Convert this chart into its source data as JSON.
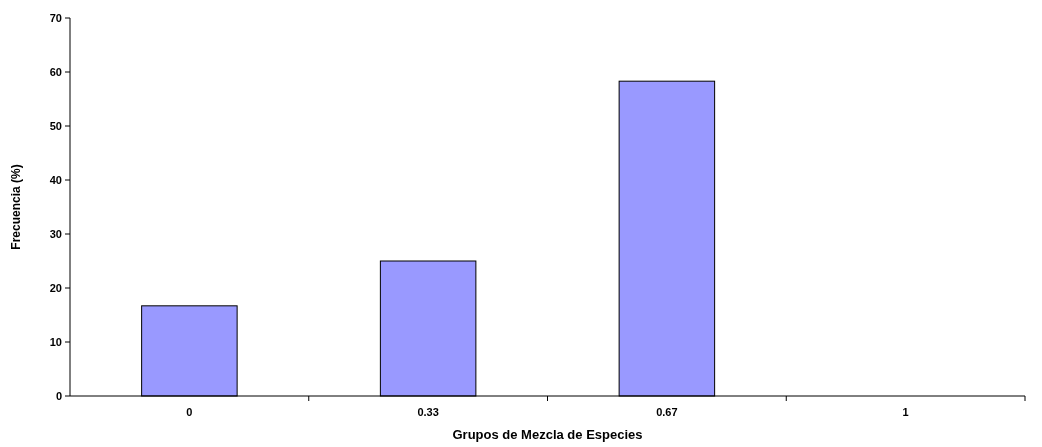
{
  "chart_data": {
    "type": "bar",
    "xlabel": "Grupos de Mezcla de Especies",
    "ylabel": "Frecuencia (%)",
    "categories": [
      "0",
      "0.33",
      "0.67",
      "1"
    ],
    "values": [
      16.7,
      25,
      58.3,
      0
    ],
    "color": "#9999ff",
    "ylim": [
      0,
      70
    ],
    "yticks": [
      0,
      10,
      20,
      30,
      40,
      50,
      60,
      70
    ],
    "grid": false
  }
}
